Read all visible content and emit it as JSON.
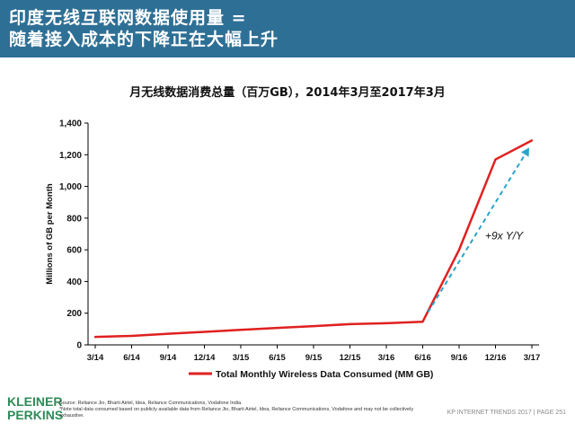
{
  "header": {
    "title": "印度无线互联网数据使用量 =\n随着接入成本的下降正在大幅上升"
  },
  "chart_data": {
    "type": "line",
    "title": "月无线数据消费总量（百万GB），2014年3月至2017年3月",
    "ylabel": "Millions of GB per Month",
    "xlabel": "",
    "categories": [
      "3/14",
      "6/14",
      "9/14",
      "12/14",
      "3/15",
      "6/15",
      "9/15",
      "12/15",
      "3/16",
      "6/16",
      "9/16",
      "12/16",
      "3/17"
    ],
    "series": [
      {
        "name": "Total Monthly Wireless Data Consumed (MM GB)",
        "color": "#e02020",
        "values": [
          50,
          57,
          70,
          82,
          95,
          107,
          118,
          131,
          137,
          146,
          600,
          1170,
          1290
        ]
      }
    ],
    "ylim": [
      0,
      1400
    ],
    "yticks": [
      0,
      200,
      400,
      600,
      800,
      1000,
      1200,
      1400
    ],
    "ytick_labels": [
      "0",
      "200",
      "400",
      "600",
      "800",
      "1,000",
      "1,200",
      "1,400"
    ],
    "grid": false,
    "legend_position": "bottom",
    "annotation": {
      "text": "+9x Y/Y",
      "color": "#2aa3c8",
      "arrow_from": {
        "x": "6/16",
        "y": 150
      },
      "arrow_to": {
        "x": "3/17",
        "y": 1245
      }
    }
  },
  "footer": {
    "logo": "KLEINER\nPERKINS",
    "source": "Source: Reliance Jio, Bharti Airtel, Idea, Reliance Communications, Vodafone India.\n*Note total data consumed based on publicly available data from Reliance Jio, Bharti Airtel, Idea, Reliance Communications, Vodafone and may not be collectively exhaustive.",
    "page_note": "KP INTERNET TRENDS 2017  |  PAGE 251"
  }
}
